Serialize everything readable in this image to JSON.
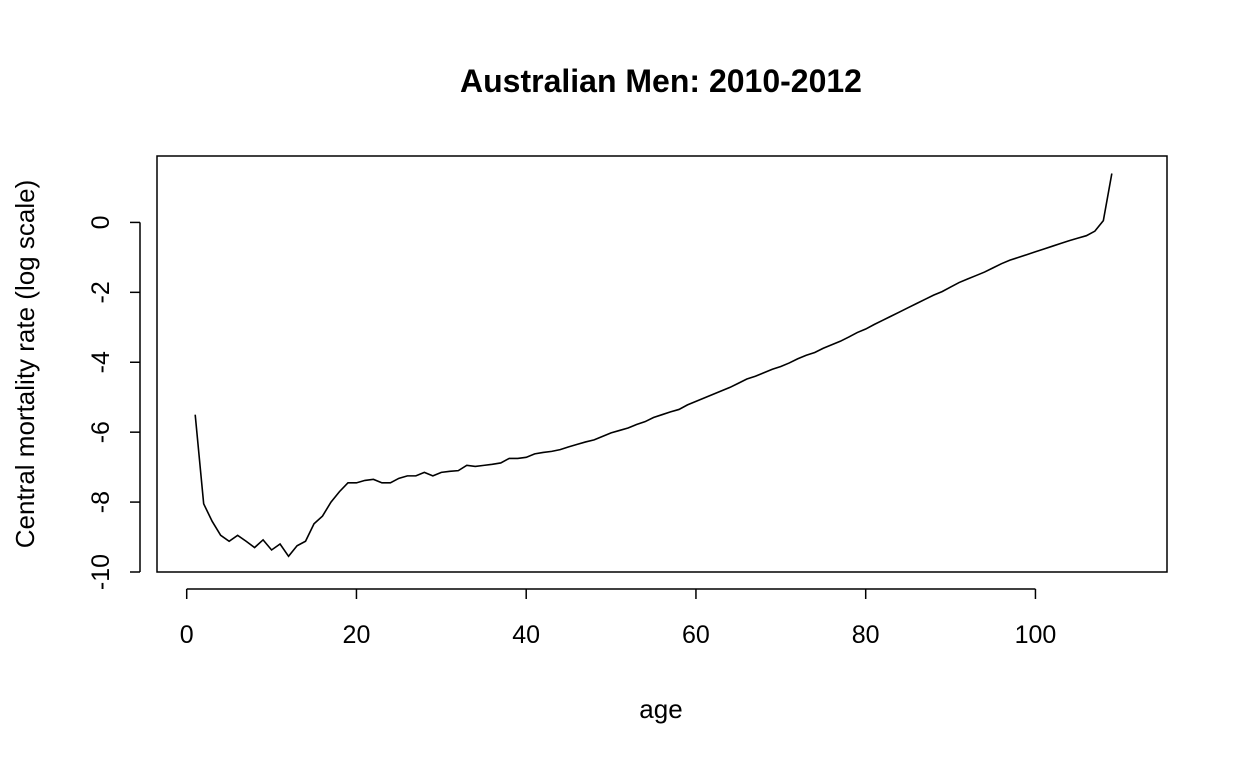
{
  "chart_data": {
    "type": "line",
    "title": "Australian Men: 2010-2012",
    "xlabel": "age",
    "ylabel": "Central mortality rate (log scale)",
    "xlim": [
      -3.5,
      115.5
    ],
    "ylim": [
      -10.0,
      1.9
    ],
    "xticks": [
      0,
      20,
      40,
      60,
      80,
      100
    ],
    "yticks": [
      -10,
      -8,
      -6,
      -4,
      -2,
      0
    ],
    "xtick_labels": [
      "0",
      "20",
      "40",
      "60",
      "80",
      "100"
    ],
    "ytick_labels": [
      "-10",
      "-8",
      "-6",
      "-4",
      "-2",
      "0"
    ],
    "grid": false,
    "legend": "none",
    "series": [
      {
        "color": "#000000",
        "x": [
          1,
          2,
          3,
          4,
          5,
          6,
          7,
          8,
          9,
          10,
          11,
          12,
          13,
          14,
          15,
          16,
          17,
          18,
          19,
          20,
          21,
          22,
          23,
          24,
          25,
          26,
          27,
          28,
          29,
          30,
          31,
          32,
          33,
          34,
          35,
          36,
          37,
          38,
          39,
          40,
          41,
          42,
          43,
          44,
          45,
          46,
          47,
          48,
          49,
          50,
          51,
          52,
          53,
          54,
          55,
          56,
          57,
          58,
          59,
          60,
          61,
          62,
          63,
          64,
          65,
          66,
          67,
          68,
          69,
          70,
          71,
          72,
          73,
          74,
          75,
          76,
          77,
          78,
          79,
          80,
          81,
          82,
          83,
          84,
          85,
          86,
          87,
          88,
          89,
          90,
          91,
          92,
          93,
          94,
          95,
          96,
          97,
          98,
          99,
          100,
          101,
          102,
          103,
          104,
          105,
          106,
          107,
          108,
          109
        ],
        "y": [
          -5.5,
          -8.05,
          -8.55,
          -8.95,
          -9.12,
          -8.95,
          -9.12,
          -9.3,
          -9.08,
          -9.37,
          -9.2,
          -9.55,
          -9.25,
          -9.12,
          -8.62,
          -8.4,
          -8.0,
          -7.7,
          -7.45,
          -7.45,
          -7.38,
          -7.35,
          -7.45,
          -7.45,
          -7.32,
          -7.25,
          -7.25,
          -7.15,
          -7.25,
          -7.15,
          -7.12,
          -7.1,
          -6.95,
          -6.98,
          -6.95,
          -6.92,
          -6.88,
          -6.75,
          -6.75,
          -6.72,
          -6.62,
          -6.58,
          -6.55,
          -6.5,
          -6.42,
          -6.35,
          -6.28,
          -6.22,
          -6.12,
          -6.02,
          -5.95,
          -5.88,
          -5.78,
          -5.7,
          -5.58,
          -5.5,
          -5.42,
          -5.35,
          -5.22,
          -5.12,
          -5.02,
          -4.92,
          -4.82,
          -4.72,
          -4.6,
          -4.48,
          -4.4,
          -4.3,
          -4.2,
          -4.12,
          -4.02,
          -3.9,
          -3.8,
          -3.72,
          -3.6,
          -3.5,
          -3.4,
          -3.28,
          -3.15,
          -3.05,
          -2.92,
          -2.8,
          -2.68,
          -2.56,
          -2.44,
          -2.32,
          -2.2,
          -2.08,
          -1.98,
          -1.85,
          -1.72,
          -1.62,
          -1.52,
          -1.42,
          -1.3,
          -1.18,
          -1.08,
          -1.0,
          -0.92,
          -0.84,
          -0.76,
          -0.68,
          -0.6,
          -0.52,
          -0.45,
          -0.38,
          -0.25,
          0.05,
          1.4
        ]
      }
    ]
  }
}
